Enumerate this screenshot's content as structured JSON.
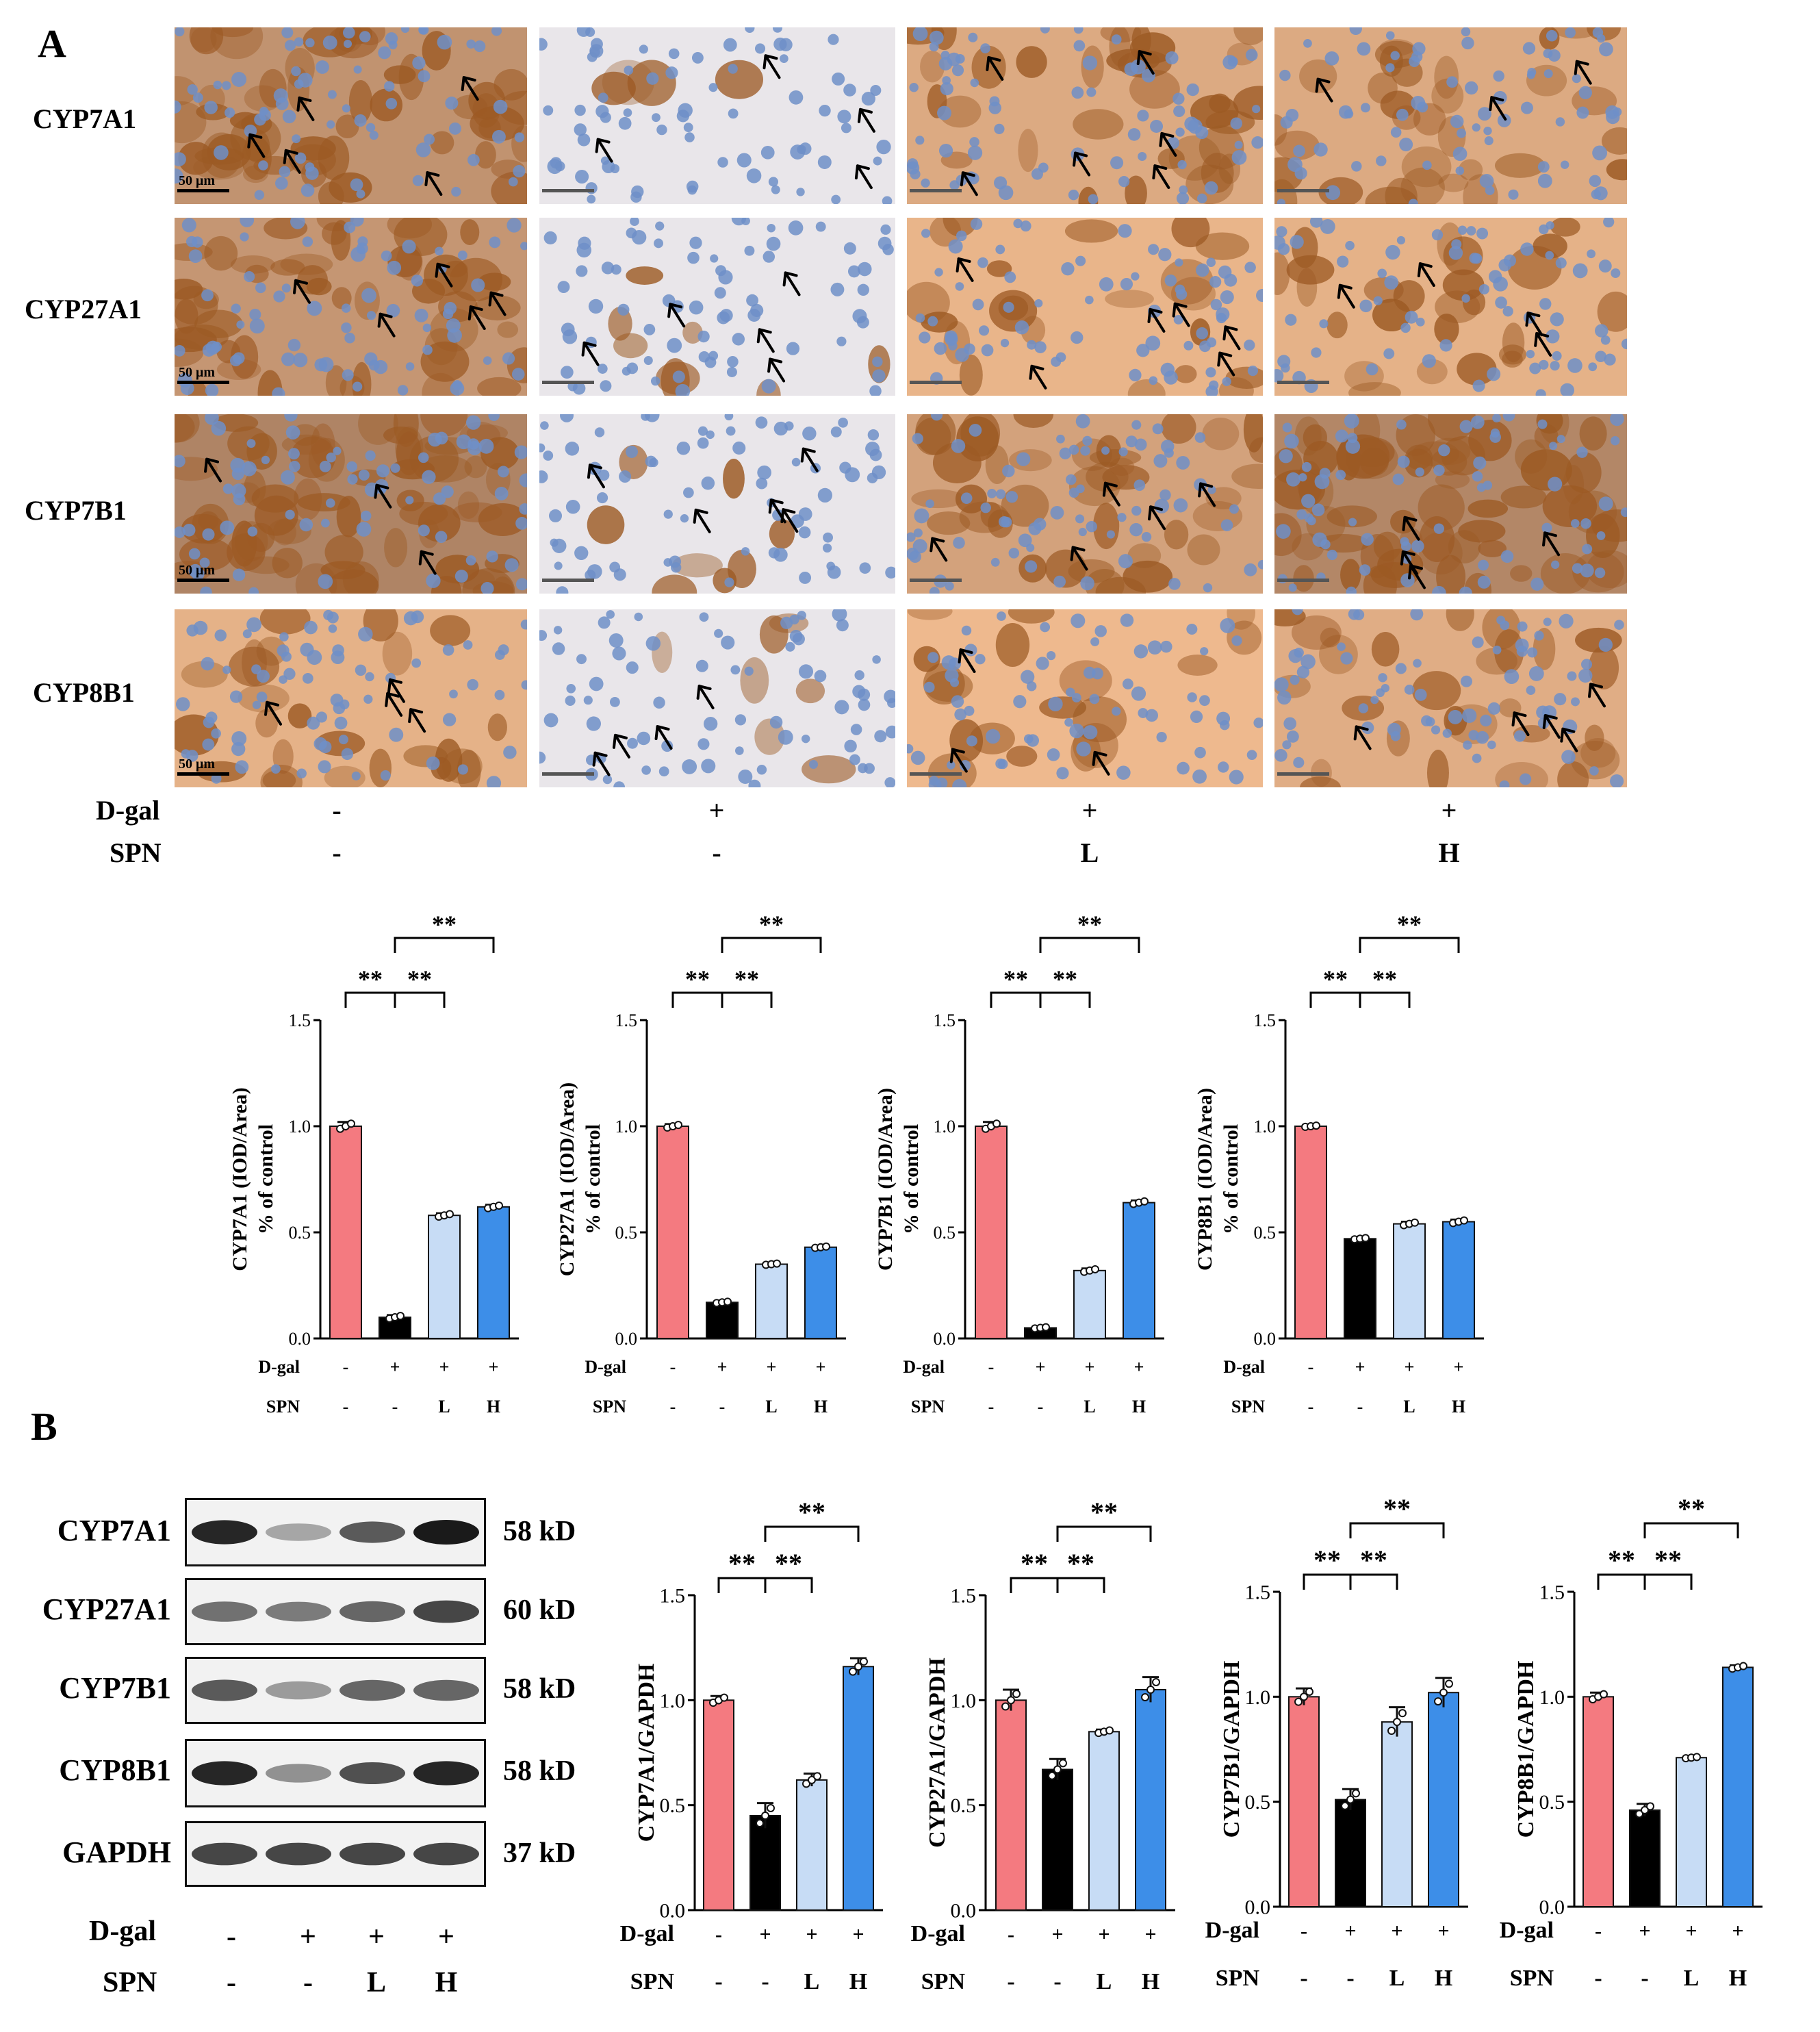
{
  "panel_a": {
    "letter": "A",
    "rows": [
      "CYP7A1",
      "CYP27A1",
      "CYP7B1",
      "CYP8B1"
    ],
    "scale_bar": "50 μm",
    "dgal_label": "D-gal",
    "spn_label": "SPN",
    "dgal_values": [
      "-",
      "+",
      "+",
      "+"
    ],
    "spn_values": [
      "-",
      "-",
      "L",
      "H"
    ]
  },
  "panel_b": {
    "letter": "B",
    "blots": [
      {
        "name": "CYP7A1",
        "kd": "58 kD"
      },
      {
        "name": "CYP27A1",
        "kd": "60 kD"
      },
      {
        "name": "CYP7B1",
        "kd": "58 kD"
      },
      {
        "name": "CYP8B1",
        "kd": "58 kD"
      },
      {
        "name": "GAPDH",
        "kd": "37 kD"
      }
    ],
    "dgal_label": "D-gal",
    "spn_label": "SPN",
    "dgal_values": [
      "-",
      "+",
      "+",
      "+"
    ],
    "spn_values": [
      "-",
      "-",
      "L",
      "H"
    ]
  },
  "colors": {
    "control": "#f47a80",
    "dgal": "#000000",
    "spn_l": "#c7dcf5",
    "spn_h": "#3d8ee8",
    "stain_brown": "#9c5a24",
    "nucleus_blue": "#6f8fc8"
  },
  "chart_data": [
    {
      "type": "bar",
      "categories": [
        "-/-",
        "+/-",
        "+/L",
        "+/H"
      ],
      "values": [
        1.0,
        0.1,
        0.58,
        0.62
      ],
      "errors": [
        0.02,
        0.01,
        0.01,
        0.01
      ],
      "ylabel": "CYP7A1 (IOD/Area)",
      "ylabel2": "% of control",
      "ylim": [
        0,
        1.5
      ],
      "yticks": [
        "0.0",
        "0.5",
        "1.0",
        "1.5"
      ],
      "x_row1_label": "D-gal",
      "x_row2_label": "SPN",
      "x_row1": [
        "-",
        "+",
        "+",
        "+"
      ],
      "x_row2": [
        "-",
        "-",
        "L",
        "H"
      ],
      "significance": [
        "**",
        "**",
        "**"
      ]
    },
    {
      "type": "bar",
      "categories": [
        "-/-",
        "+/-",
        "+/L",
        "+/H"
      ],
      "values": [
        1.0,
        0.17,
        0.35,
        0.43
      ],
      "errors": [
        0.01,
        0.005,
        0.005,
        0.005
      ],
      "ylabel": "CYP27A1 (IOD/Area)",
      "ylabel2": "% of control",
      "ylim": [
        0,
        1.5
      ],
      "yticks": [
        "0.0",
        "0.5",
        "1.0",
        "1.5"
      ],
      "x_row1_label": "D-gal",
      "x_row2_label": "SPN",
      "x_row1": [
        "-",
        "+",
        "+",
        "+"
      ],
      "x_row2": [
        "-",
        "-",
        "L",
        "H"
      ],
      "significance": [
        "**",
        "**",
        "**"
      ]
    },
    {
      "type": "bar",
      "categories": [
        "-/-",
        "+/-",
        "+/L",
        "+/H"
      ],
      "values": [
        1.0,
        0.05,
        0.32,
        0.64
      ],
      "errors": [
        0.02,
        0.005,
        0.01,
        0.01
      ],
      "ylabel": "CYP7B1 (IOD/Area)",
      "ylabel2": "% of control",
      "ylim": [
        0,
        1.5
      ],
      "yticks": [
        "0.0",
        "0.5",
        "1.0",
        "1.5"
      ],
      "x_row1_label": "D-gal",
      "x_row2_label": "SPN",
      "x_row1": [
        "-",
        "+",
        "+",
        "+"
      ],
      "x_row2": [
        "-",
        "-",
        "L",
        "H"
      ],
      "significance": [
        "**",
        "**",
        "**"
      ]
    },
    {
      "type": "bar",
      "categories": [
        "-/-",
        "+/-",
        "+/L",
        "+/H"
      ],
      "values": [
        1.0,
        0.47,
        0.54,
        0.55
      ],
      "errors": [
        0.005,
        0.005,
        0.01,
        0.01
      ],
      "ylabel": "CYP8B1 (IOD/Area)",
      "ylabel2": "% of control",
      "ylim": [
        0,
        1.5
      ],
      "yticks": [
        "0.0",
        "0.5",
        "1.0",
        "1.5"
      ],
      "x_row1_label": "D-gal",
      "x_row2_label": "SPN",
      "x_row1": [
        "-",
        "+",
        "+",
        "+"
      ],
      "x_row2": [
        "-",
        "-",
        "L",
        "H"
      ],
      "significance": [
        "**",
        "**",
        "**"
      ]
    },
    {
      "type": "bar",
      "categories": [
        "-/-",
        "+/-",
        "+/L",
        "+/H"
      ],
      "values": [
        1.0,
        0.45,
        0.62,
        1.16
      ],
      "errors": [
        0.02,
        0.06,
        0.03,
        0.04
      ],
      "ylabel": "CYP7A1/GAPDH",
      "ylabel2": "",
      "ylim": [
        0,
        1.5
      ],
      "yticks": [
        "0.0",
        "0.5",
        "1.0",
        "1.5"
      ],
      "x_row1_label": "D-gal",
      "x_row2_label": "SPN",
      "x_row1": [
        "-",
        "+",
        "+",
        "+"
      ],
      "x_row2": [
        "-",
        "-",
        "L",
        "H"
      ],
      "significance": [
        "**",
        "**",
        "**"
      ]
    },
    {
      "type": "bar",
      "categories": [
        "-/-",
        "+/-",
        "+/L",
        "+/H"
      ],
      "values": [
        1.0,
        0.67,
        0.85,
        1.05
      ],
      "errors": [
        0.05,
        0.05,
        0.01,
        0.06
      ],
      "ylabel": "CYP27A1/GAPDH",
      "ylabel2": "",
      "ylim": [
        0,
        1.5
      ],
      "yticks": [
        "0.0",
        "0.5",
        "1.0",
        "1.5"
      ],
      "x_row1_label": "D-gal",
      "x_row2_label": "SPN",
      "x_row1": [
        "-",
        "+",
        "+",
        "+"
      ],
      "x_row2": [
        "-",
        "-",
        "L",
        "H"
      ],
      "significance": [
        "**",
        "**",
        "**"
      ]
    },
    {
      "type": "bar",
      "categories": [
        "-/-",
        "+/-",
        "+/L",
        "+/H"
      ],
      "values": [
        1.0,
        0.51,
        0.88,
        1.02
      ],
      "errors": [
        0.04,
        0.05,
        0.07,
        0.07
      ],
      "ylabel": "CYP7B1/GAPDH",
      "ylabel2": "",
      "ylim": [
        0,
        1.5
      ],
      "yticks": [
        "0.0",
        "0.5",
        "1.0",
        "1.5"
      ],
      "x_row1_label": "D-gal",
      "x_row2_label": "SPN",
      "x_row1": [
        "-",
        "+",
        "+",
        "+"
      ],
      "x_row2": [
        "-",
        "-",
        "L",
        "H"
      ],
      "significance": [
        "**",
        "**",
        "**"
      ]
    },
    {
      "type": "bar",
      "categories": [
        "-/-",
        "+/-",
        "+/L",
        "+/H"
      ],
      "values": [
        1.0,
        0.46,
        0.71,
        1.14
      ],
      "errors": [
        0.02,
        0.03,
        0.005,
        0.01
      ],
      "ylabel": "CYP8B1/GAPDH",
      "ylabel2": "",
      "ylim": [
        0,
        1.5
      ],
      "yticks": [
        "0.0",
        "0.5",
        "1.0",
        "1.5"
      ],
      "x_row1_label": "D-gal",
      "x_row2_label": "SPN",
      "x_row1": [
        "-",
        "+",
        "+",
        "+"
      ],
      "x_row2": [
        "-",
        "-",
        "L",
        "H"
      ],
      "significance": [
        "**",
        "**",
        "**"
      ]
    }
  ]
}
